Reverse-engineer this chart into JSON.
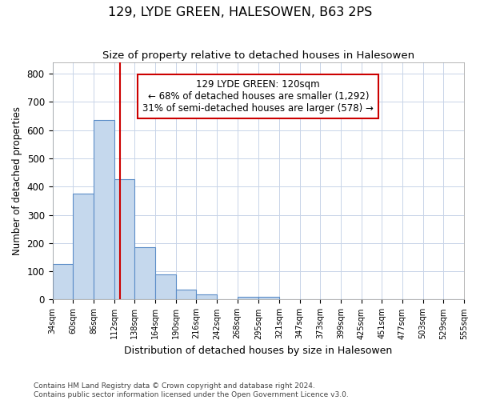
{
  "title": "129, LYDE GREEN, HALESOWEN, B63 2PS",
  "subtitle": "Size of property relative to detached houses in Halesowen",
  "xlabel": "Distribution of detached houses by size in Halesowen",
  "ylabel": "Number of detached properties",
  "bar_values": [
    125,
    375,
    635,
    425,
    185,
    88,
    35,
    17,
    0,
    10,
    10,
    0,
    0,
    0,
    0,
    0,
    0,
    0,
    0,
    0
  ],
  "bar_color": "#c5d8ed",
  "bar_edge_color": "#5b8dc8",
  "bin_edges": [
    34,
    60,
    86,
    112,
    138,
    164,
    190,
    216,
    242,
    268,
    295,
    321,
    347,
    373,
    399,
    425,
    451,
    477,
    503,
    529,
    555
  ],
  "x_tick_labels": [
    "34sqm",
    "60sqm",
    "86sqm",
    "112sqm",
    "138sqm",
    "164sqm",
    "190sqm",
    "216sqm",
    "242sqm",
    "268sqm",
    "295sqm",
    "321sqm",
    "347sqm",
    "373sqm",
    "399sqm",
    "425sqm",
    "451sqm",
    "477sqm",
    "503sqm",
    "529sqm",
    "555sqm"
  ],
  "red_line_x": 120,
  "ylim": [
    0,
    840
  ],
  "yticks": [
    0,
    100,
    200,
    300,
    400,
    500,
    600,
    700,
    800
  ],
  "annotation_text": "129 LYDE GREEN: 120sqm\n← 68% of detached houses are smaller (1,292)\n31% of semi-detached houses are larger (578) →",
  "annotation_box_color": "#ffffff",
  "annotation_box_edge": "#cc0000",
  "footer_text": "Contains HM Land Registry data © Crown copyright and database right 2024.\nContains public sector information licensed under the Open Government Licence v3.0.",
  "background_color": "#ffffff",
  "grid_color": "#c8d4e8"
}
